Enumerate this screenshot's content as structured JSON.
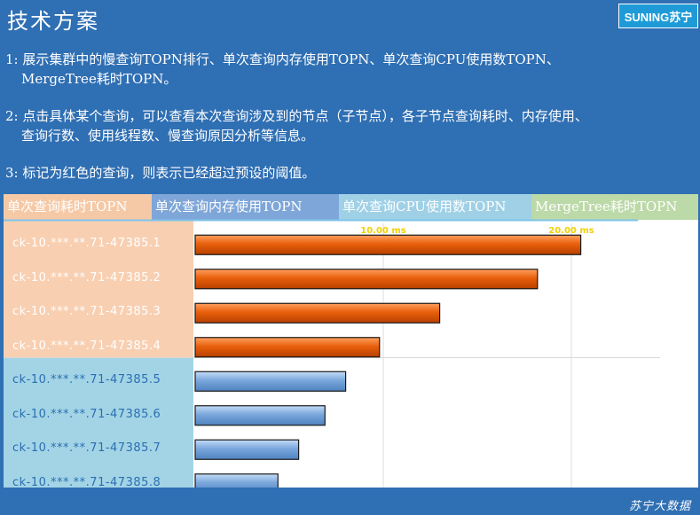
{
  "slide": {
    "title": "技术方案",
    "logo_text": "SUNING苏宁",
    "footer": "苏宁大数据"
  },
  "bullets": [
    {
      "line1": "1: 展示集群中的慢查询TOPN排行、单次查询内存使用TOPN、单次查询CPU使用数TOPN、",
      "line2": "MergeTree耗时TOPN。"
    },
    {
      "line1": "2: 点击具体某个查询，可以查看本次查询涉及到的节点（子节点），各子节点查询耗时、内存使用、",
      "line2": "查询行数、使用线程数、慢查询原因分析等信息。"
    },
    {
      "line1": "3: 标记为红色的查询，则表示已经超过预设的阈值。",
      "line2": ""
    }
  ],
  "tabs": [
    {
      "label": "单次查询耗时TOPN"
    },
    {
      "label": "单次查询内存使用TOPN"
    },
    {
      "label": "单次查询CPU使用数TOPN"
    },
    {
      "label": "MergeTree耗时TOPN"
    }
  ],
  "chart_data": {
    "type": "bar",
    "orientation": "horizontal",
    "tick_labels": [
      "10.00 ms",
      "20.00 ms"
    ],
    "xlim": [
      0,
      25
    ],
    "categories": [
      "ck-10.***.**.71-47385.1",
      "ck-10.***.**.71-47385.2",
      "ck-10.***.**.71-47385.3",
      "ck-10.***.**.71-47385.4",
      "ck-10.***.**.71-47385.5",
      "ck-10.***.**.71-47385.6",
      "ck-10.***.**.71-47385.7",
      "ck-10.***.**.71-47385.8"
    ],
    "values": [
      20.5,
      18.2,
      13.0,
      9.8,
      8.0,
      6.9,
      5.5,
      4.4
    ],
    "over_threshold": [
      true,
      true,
      true,
      true,
      false,
      false,
      false,
      false
    ],
    "colors": {
      "over_threshold": "#e8600c",
      "normal": "#7aa7dc",
      "tick_text": "#f0d000"
    }
  }
}
